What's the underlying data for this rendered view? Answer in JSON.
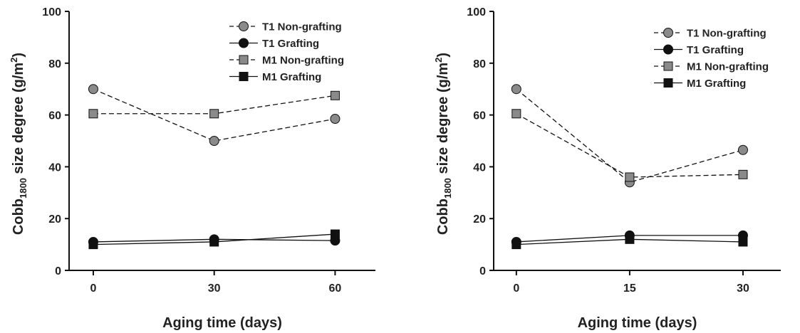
{
  "chart_data": [
    {
      "type": "line",
      "x": [
        0,
        30,
        60
      ],
      "xticks": [
        0,
        30,
        60
      ],
      "xlim": [
        -6,
        70
      ],
      "xlabel": "Aging time (days)",
      "ylabel_main": "Cobb",
      "ylabel_sub": "1800",
      "ylabel_rest": " size degree (g/m",
      "ylabel_sup": "2",
      "ylabel_end": ")",
      "ylim": [
        0,
        100
      ],
      "yticks": [
        0,
        20,
        40,
        60,
        80,
        100
      ],
      "legend_position": "top-right",
      "series": [
        {
          "name": "T1 Non-grafting",
          "values": [
            70,
            50,
            58.5
          ],
          "marker": "circle",
          "fill": "#8a8a8a",
          "dashed": true
        },
        {
          "name": "T1 Grafting",
          "values": [
            11,
            12,
            11.5
          ],
          "marker": "circle",
          "fill": "#111111",
          "dashed": false
        },
        {
          "name": "M1 Non-grafting",
          "values": [
            60.5,
            60.5,
            67.5
          ],
          "marker": "square",
          "fill": "#8a8a8a",
          "dashed": true
        },
        {
          "name": "M1 Grafting",
          "values": [
            10,
            11,
            14
          ],
          "marker": "square",
          "fill": "#111111",
          "dashed": false
        }
      ]
    },
    {
      "type": "line",
      "x": [
        0,
        15,
        30
      ],
      "xticks": [
        0,
        15,
        30
      ],
      "xlim": [
        -3,
        35
      ],
      "xlabel": "Aging time (days)",
      "ylabel_main": "Cobb",
      "ylabel_sub": "1800",
      "ylabel_rest": " size degree (g/m",
      "ylabel_sup": "2",
      "ylabel_end": ")",
      "ylim": [
        0,
        100
      ],
      "yticks": [
        0,
        20,
        40,
        60,
        80,
        100
      ],
      "legend_position": "top-right",
      "series": [
        {
          "name": "T1 Non-grafting",
          "values": [
            70,
            34,
            46.5
          ],
          "marker": "circle",
          "fill": "#8a8a8a",
          "dashed": true
        },
        {
          "name": "T1 Grafting",
          "values": [
            11,
            13.5,
            13.5
          ],
          "marker": "circle",
          "fill": "#111111",
          "dashed": false
        },
        {
          "name": "M1 Non-grafting",
          "values": [
            60.5,
            36,
            37
          ],
          "marker": "square",
          "fill": "#8a8a8a",
          "dashed": true
        },
        {
          "name": "M1 Grafting",
          "values": [
            10,
            12,
            11
          ],
          "marker": "square",
          "fill": "#111111",
          "dashed": false
        }
      ]
    }
  ]
}
